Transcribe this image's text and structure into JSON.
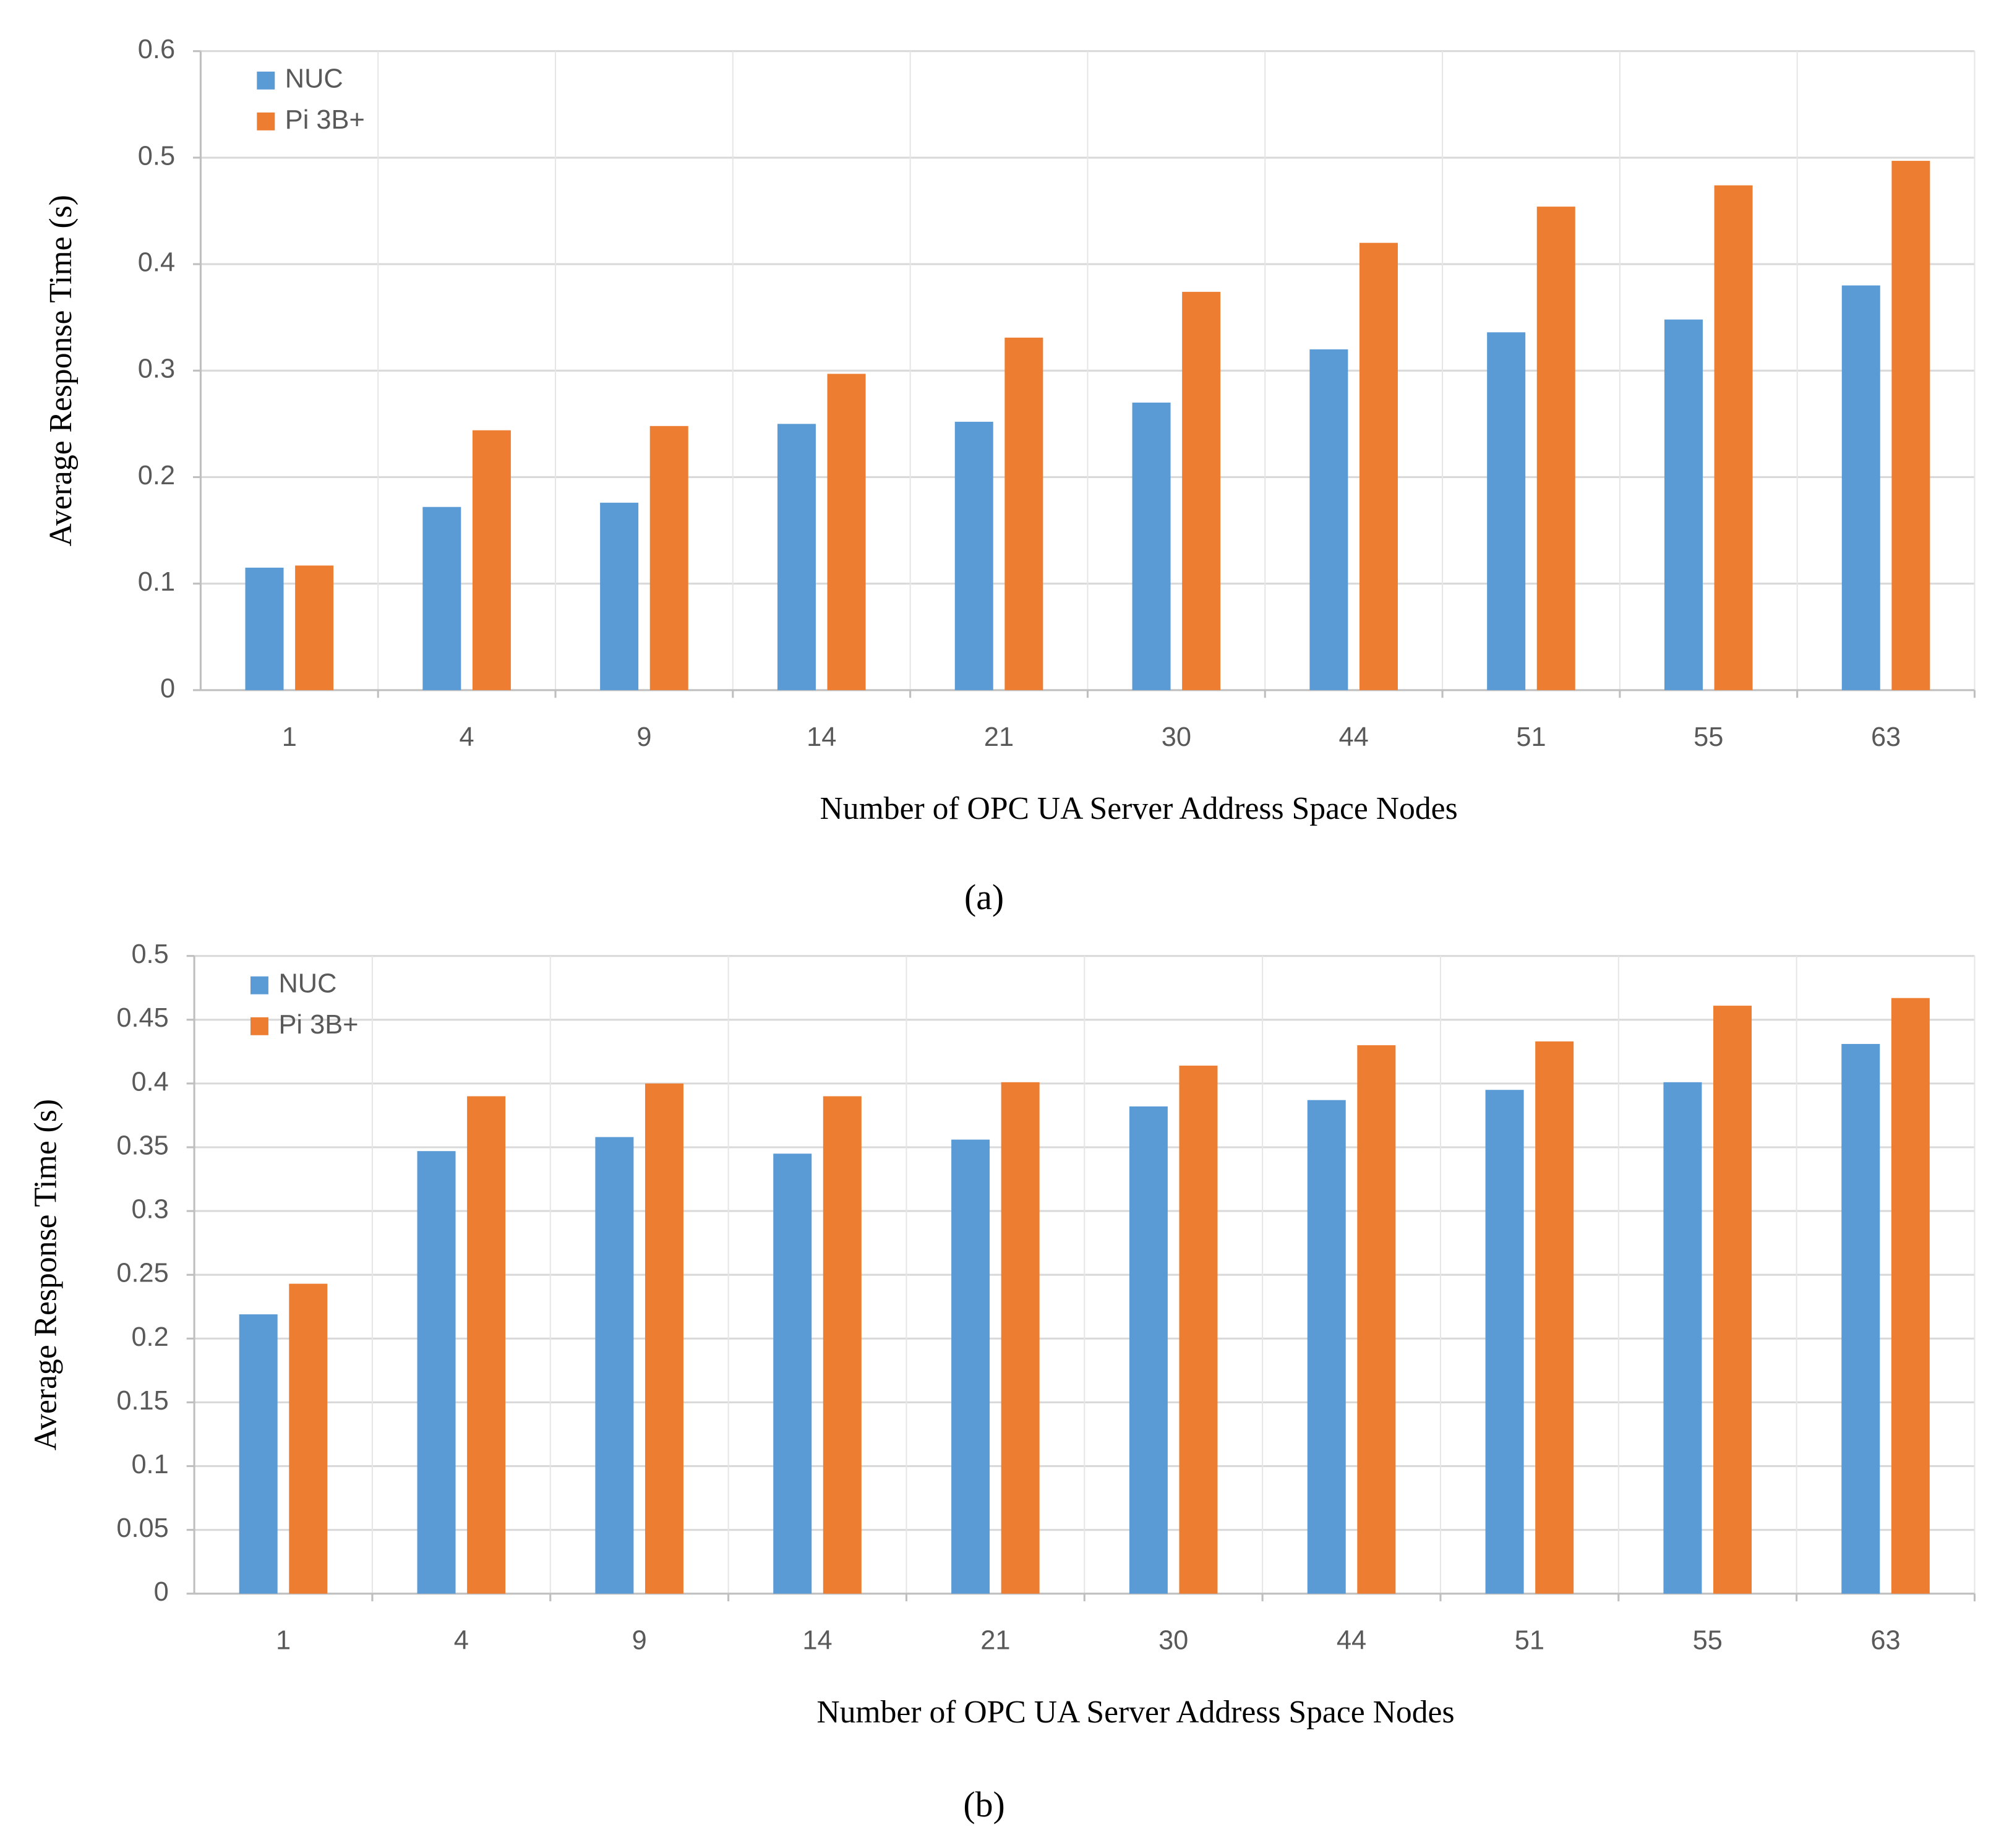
{
  "chart_data": [
    {
      "type": "bar",
      "xlabel": "Number of OPC UA Server Address Space Nodes",
      "ylabel": "Average Response Time (s)",
      "caption": "(a)",
      "categories": [
        "1",
        "4",
        "9",
        "14",
        "21",
        "30",
        "44",
        "51",
        "55",
        "63"
      ],
      "series": [
        {
          "name": "NUC",
          "color": "#5b9bd5",
          "values": [
            0.115,
            0.172,
            0.176,
            0.25,
            0.252,
            0.27,
            0.32,
            0.336,
            0.348,
            0.38
          ]
        },
        {
          "name": "Pi 3B+",
          "color": "#ed7d31",
          "values": [
            0.117,
            0.244,
            0.248,
            0.297,
            0.331,
            0.374,
            0.42,
            0.454,
            0.474,
            0.497
          ]
        }
      ],
      "ylim": [
        0,
        0.6
      ],
      "yticks": [
        0,
        0.1,
        0.2,
        0.3,
        0.4,
        0.5,
        0.6
      ],
      "grid": true,
      "legend": "upper left"
    },
    {
      "type": "bar",
      "xlabel": "Number of OPC UA Server Address Space Nodes",
      "ylabel": "Average Response Time (s)",
      "caption": "(b)",
      "categories": [
        "1",
        "4",
        "9",
        "14",
        "21",
        "30",
        "44",
        "51",
        "55",
        "63"
      ],
      "series": [
        {
          "name": "NUC",
          "color": "#5b9bd5",
          "values": [
            0.219,
            0.347,
            0.358,
            0.345,
            0.356,
            0.382,
            0.387,
            0.395,
            0.401,
            0.431
          ]
        },
        {
          "name": "Pi 3B+",
          "color": "#ed7d31",
          "values": [
            0.243,
            0.39,
            0.4,
            0.39,
            0.401,
            0.414,
            0.43,
            0.433,
            0.461,
            0.467
          ]
        }
      ],
      "ylim": [
        0,
        0.5
      ],
      "yticks": [
        0,
        0.05,
        0.1,
        0.15,
        0.2,
        0.25,
        0.3,
        0.35,
        0.4,
        0.45,
        0.5
      ],
      "grid": true,
      "legend": "upper left"
    }
  ]
}
